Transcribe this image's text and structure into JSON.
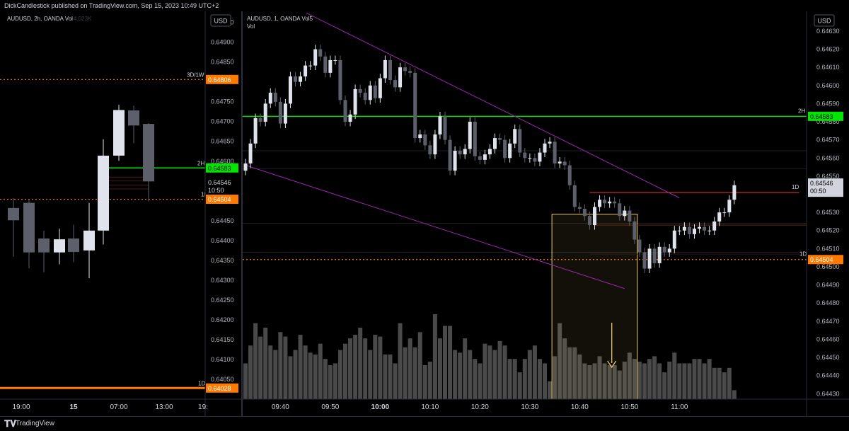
{
  "header": {
    "publisher": "DickCandlestick published on TradingView.com, Sep 15, 2023 10:49 UTC+2"
  },
  "footer": {
    "brand": "TradingView",
    "logo": "tradingview-logo-icon"
  },
  "colors": {
    "up": "#e0e3eb",
    "down": "#5d606b",
    "green": "#00e600",
    "orange": "#ff7a00",
    "red": "#f23645",
    "purple": "#9c27b0",
    "box": "#e6c86e"
  },
  "left_chart": {
    "legend": "AUDUSD, 2h, OANDA  Vol",
    "legend_faded": "4.023K",
    "currency": "USD",
    "ylim": [
      0.64,
      0.6496
    ],
    "y_ticks": [
      "0.64950",
      "0.64900",
      "0.64850",
      "0.64800",
      "0.64750",
      "0.64700",
      "0.64650",
      "0.64600",
      "0.64550",
      "0.64500",
      "0.64450",
      "0.64400",
      "0.64350",
      "0.64300",
      "0.64250",
      "0.64200",
      "0.64150",
      "0.64100",
      "0.64050"
    ],
    "x_labels": [
      "19:00",
      "15",
      "07:00",
      "13:00",
      "19:"
    ],
    "candles": [
      {
        "o": 0.64482,
        "h": 0.64507,
        "l": 0.64359,
        "c": 0.64451
      },
      {
        "o": 0.64495,
        "h": 0.64502,
        "l": 0.6433,
        "c": 0.6437
      },
      {
        "o": 0.64405,
        "h": 0.64425,
        "l": 0.6432,
        "c": 0.6437
      },
      {
        "o": 0.6437,
        "h": 0.6443,
        "l": 0.6434,
        "c": 0.64403
      },
      {
        "o": 0.64405,
        "h": 0.6444,
        "l": 0.64345,
        "c": 0.64371
      },
      {
        "o": 0.64375,
        "h": 0.64495,
        "l": 0.64305,
        "c": 0.64425
      },
      {
        "o": 0.64425,
        "h": 0.64655,
        "l": 0.6439,
        "c": 0.64614
      },
      {
        "o": 0.64614,
        "h": 0.64742,
        "l": 0.64601,
        "c": 0.64729
      },
      {
        "o": 0.64728,
        "h": 0.6474,
        "l": 0.64645,
        "c": 0.6469
      },
      {
        "o": 0.64694,
        "h": 0.64696,
        "l": 0.64498,
        "c": 0.64549
      }
    ],
    "levels": [
      {
        "label": "3D/1W",
        "value": "0.64806"
      },
      {
        "label": "2H",
        "value": "0.64583"
      },
      {
        "label": "1D",
        "value": "0.64504"
      },
      {
        "label": "1D",
        "value": "0.64028"
      }
    ],
    "last_price": "0.64546",
    "countdown": "10:50"
  },
  "right_chart": {
    "legend": "AUDUSD, 1, OANDA  Vol5",
    "legend_vol": "Vol",
    "currency": "USD",
    "ylim": [
      0.64427,
      0.64637
    ],
    "y_ticks": [
      "0.64630",
      "0.64620",
      "0.64610",
      "0.64600",
      "0.64590",
      "0.64580",
      "0.64570",
      "0.64560",
      "0.64550",
      "0.64540",
      "0.64530",
      "0.64520",
      "0.64510",
      "0.64500",
      "0.64490",
      "0.64480",
      "0.64470",
      "0.64460",
      "0.64450",
      "0.64440",
      "0.64430"
    ],
    "x_labels": [
      "09:40",
      "09:50",
      "10:00",
      "10:10",
      "10:20",
      "10:30",
      "10:40",
      "10:50",
      "11:00"
    ],
    "x_bold": "10:00",
    "levels": [
      {
        "label": "2H",
        "value": "0.64583"
      },
      {
        "label": "1D",
        "value": "0.64504"
      },
      {
        "label": "1D",
        "value": ""
      }
    ],
    "last_price": "0.64546",
    "countdown": "00:50",
    "closes": [
      0.64557,
      0.64568,
      0.64582,
      0.6458,
      0.6459,
      0.64596,
      0.64591,
      0.64579,
      0.6459,
      0.64605,
      0.64602,
      0.64605,
      0.64611,
      0.64611,
      0.6462,
      0.64616,
      0.64607,
      0.64614,
      0.64614,
      0.64592,
      0.6458,
      0.64584,
      0.64598,
      0.64596,
      0.64592,
      0.646,
      0.64593,
      0.64604,
      0.64614,
      0.64603,
      0.64599,
      0.6461,
      0.64608,
      0.64607,
      0.64571,
      0.64573,
      0.64567,
      0.64562,
      0.64573,
      0.64583,
      0.6457,
      0.64553,
      0.64564,
      0.64562,
      0.64565,
      0.6458,
      0.64561,
      0.64559,
      0.64562,
      0.64565,
      0.64571,
      0.6457,
      0.6456,
      0.64568,
      0.64576,
      0.64563,
      0.6456,
      0.6456,
      0.64558,
      0.64563,
      0.64568,
      0.64569,
      0.64557,
      0.64558,
      0.64556,
      0.64545,
      0.64533,
      0.64532,
      0.64528,
      0.64523,
      0.64533,
      0.64537,
      0.64535,
      0.64536,
      0.64535,
      0.64528,
      0.64531,
      0.64525,
      0.64515,
      0.64508,
      0.64499,
      0.6451,
      0.64502,
      0.64511,
      0.64508,
      0.6451,
      0.6452,
      0.6452,
      0.64522,
      0.64518,
      0.64521,
      0.64522,
      0.6452,
      0.6452,
      0.64525,
      0.6453,
      0.6453,
      0.64537,
      0.64545
    ],
    "volumes": [
      40,
      60,
      85,
      70,
      80,
      60,
      55,
      75,
      70,
      48,
      55,
      72,
      60,
      52,
      50,
      62,
      45,
      38,
      40,
      55,
      62,
      68,
      72,
      80,
      68,
      55,
      72,
      70,
      50,
      50,
      40,
      85,
      58,
      68,
      58,
      75,
      38,
      42,
      95,
      68,
      82,
      82,
      55,
      52,
      68,
      55,
      45,
      40,
      62,
      60,
      55,
      65,
      60,
      45,
      45,
      30,
      45,
      55,
      60,
      45,
      40,
      20,
      48,
      85,
      68,
      58,
      58,
      50,
      40,
      38,
      40,
      48,
      40,
      38,
      38,
      32,
      42,
      52,
      45,
      42,
      40,
      45,
      48,
      40,
      30,
      42,
      52,
      40,
      40,
      40,
      45,
      45,
      40,
      45,
      35,
      35,
      30,
      35,
      10
    ],
    "purple_upper": [
      [
        0,
        0.6464
      ],
      [
        87,
        0.64538
      ]
    ],
    "purple_lower": [
      [
        0,
        0.64556
      ],
      [
        76,
        0.64488
      ]
    ],
    "box": {
      "start": 62,
      "end": 78,
      "high": 0.64529,
      "low": 0.64427
    }
  }
}
